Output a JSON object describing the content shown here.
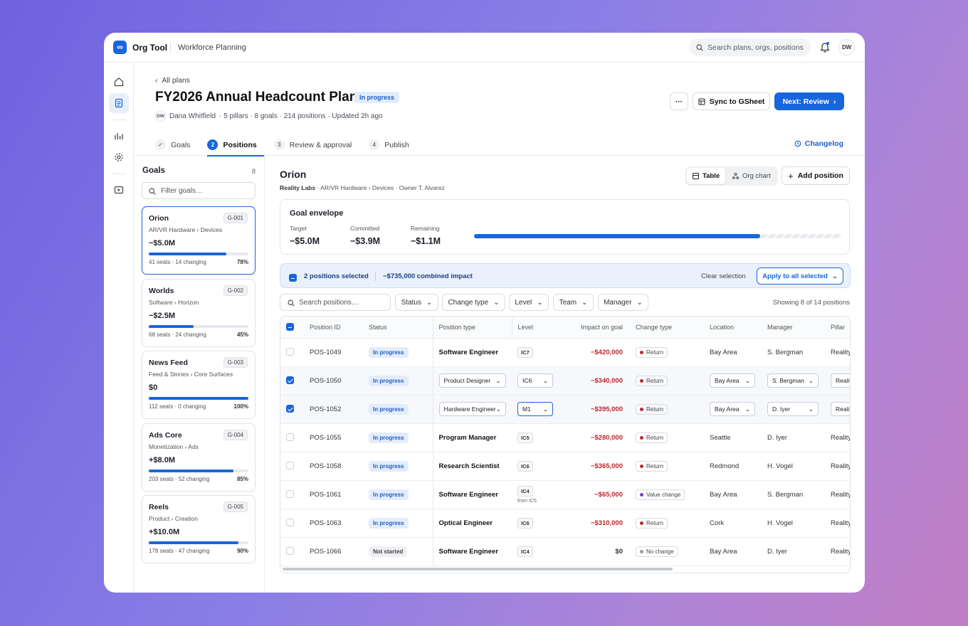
{
  "app": {
    "name": "Org Tool",
    "logo": "∞",
    "section": "Workforce Planning",
    "search_placeholder": "Search plans, orgs, positions",
    "user_initials": "DW"
  },
  "rail": {
    "icons": [
      "home-icon",
      "document-icon",
      "chart-icon",
      "gear-icon",
      "play-icon"
    ]
  },
  "header": {
    "back_label": "All plans",
    "title": "FY2026 Annual Headcount Plan",
    "status": "In progress",
    "owner_initials": "DW",
    "owner": "Dana Whitfield",
    "meta": "· 5 pillars · 8 goals · 214 positions · Updated 2h ago",
    "more_label": "···",
    "sync_label": "Sync to GSheet",
    "next_label": "Next: Review",
    "changelog_label": "Changelog",
    "tabs": [
      {
        "num": "✓",
        "label": "Goals"
      },
      {
        "num": "2",
        "label": "Positions"
      },
      {
        "num": "3",
        "label": "Review & approval"
      },
      {
        "num": "4",
        "label": "Publish"
      }
    ]
  },
  "goals": {
    "title": "Goals",
    "count": "8",
    "filter_placeholder": "Filter goals…",
    "items": [
      {
        "name": "Orion",
        "id": "G-001",
        "path": "AR/VR Hardware › Devices",
        "value": "−$5.0M",
        "progress": 0.78,
        "stats": "41 seats · 14 changing",
        "pct": "78%"
      },
      {
        "name": "Worlds",
        "id": "G-002",
        "path": "Software › Horizon",
        "value": "−$2.5M",
        "progress": 0.45,
        "stats": "68 seats · 24 changing",
        "pct": "45%"
      },
      {
        "name": "News Feed",
        "id": "G-003",
        "path": "Feed & Stories › Core Surfaces",
        "value": "$0",
        "progress": 1.0,
        "stats": "112 seats · 0 changing",
        "pct": "100%"
      },
      {
        "name": "Ads Core",
        "id": "G-004",
        "path": "Monetization › Ads",
        "value": "+$8.0M",
        "progress": 0.85,
        "stats": "203 seats · 52 changing",
        "pct": "85%"
      },
      {
        "name": "Reels",
        "id": "G-005",
        "path": "Product › Creation",
        "value": "+$10.0M",
        "progress": 0.9,
        "stats": "178 seats · 47 changing",
        "pct": "90%"
      }
    ]
  },
  "main": {
    "title": "Orion",
    "org": "Reality Labs",
    "path": "· AR/VR Hardware › Devices · Owner T. Alvarez",
    "view_table": "Table",
    "view_org": "Org chart",
    "add_label": "Add position",
    "envelope": {
      "title": "Goal envelope",
      "target_label": "Target",
      "target": "−$5.0M",
      "committed_label": "Committed",
      "committed": "−$3.9M",
      "remaining_label": "Remaining",
      "remaining": "−$1.1M",
      "progress": 0.78
    },
    "selection": {
      "count_label": "2 positions selected",
      "impact": "−$735,000 combined impact",
      "clear_label": "Clear selection",
      "apply_label": "Apply to all selected"
    },
    "filters": {
      "search_placeholder": "Search positions…",
      "dropdowns": [
        "Status",
        "Change type",
        "Level",
        "Team",
        "Manager"
      ],
      "showing": "Showing 8 of 14 positions"
    },
    "columns": [
      "Position ID",
      "Status",
      "Position type",
      "Level",
      "Impact on goal",
      "Change type",
      "Location",
      "Manager",
      "Pillar"
    ],
    "rows": [
      {
        "checked": false,
        "id": "POS-1049",
        "status": "In progress",
        "type": "Software Engineer",
        "level": "IC7",
        "from": "",
        "impact": "−$420,000",
        "change": "Return",
        "change_kind": "return",
        "location": "Bay Area",
        "manager": "S. Bergman",
        "pillar": "Reality Labs",
        "editing": false
      },
      {
        "checked": true,
        "id": "POS-1050",
        "status": "In progress",
        "type": "Product Designer",
        "level": "IC6",
        "from": "",
        "impact": "−$340,000",
        "change": "Return",
        "change_kind": "return",
        "location": "Bay Area",
        "manager": "S. Bergman",
        "pillar": "Reality Labs",
        "editing": true
      },
      {
        "checked": true,
        "id": "POS-1052",
        "status": "In progress",
        "type": "Hardware Engineer",
        "level": "M1",
        "from": "",
        "impact": "−$395,000",
        "change": "Return",
        "change_kind": "return",
        "location": "Bay Area",
        "manager": "D. Iyer",
        "pillar": "Reality Labs",
        "editing": true,
        "focus": true
      },
      {
        "checked": false,
        "id": "POS-1055",
        "status": "In progress",
        "type": "Program Manager",
        "level": "IC5",
        "from": "",
        "impact": "−$280,000",
        "change": "Return",
        "change_kind": "return",
        "location": "Seattle",
        "manager": "D. Iyer",
        "pillar": "Reality Labs",
        "editing": false
      },
      {
        "checked": false,
        "id": "POS-1058",
        "status": "In progress",
        "type": "Research Scientist",
        "level": "IC6",
        "from": "",
        "impact": "−$365,000",
        "change": "Return",
        "change_kind": "return",
        "location": "Redmond",
        "manager": "H. Vogel",
        "pillar": "Reality Labs",
        "editing": false
      },
      {
        "checked": false,
        "id": "POS-1061",
        "status": "In progress",
        "type": "Software Engineer",
        "level": "IC4",
        "from": "from IC5",
        "impact": "−$65,000",
        "change": "Value change",
        "change_kind": "value",
        "location": "Bay Area",
        "manager": "S. Bergman",
        "pillar": "Reality Labs",
        "editing": false
      },
      {
        "checked": false,
        "id": "POS-1063",
        "status": "In progress",
        "type": "Optical Engineer",
        "level": "IC6",
        "from": "",
        "impact": "−$310,000",
        "change": "Return",
        "change_kind": "return",
        "location": "Cork",
        "manager": "H. Vogel",
        "pillar": "Reality Labs",
        "editing": false
      },
      {
        "checked": false,
        "id": "POS-1066",
        "status": "Not started",
        "type": "Software Engineer",
        "level": "IC4",
        "from": "",
        "impact": "$0",
        "change": "No change",
        "change_kind": "none",
        "location": "Bay Area",
        "manager": "D. Iyer",
        "pillar": "Reality Labs",
        "editing": false
      }
    ]
  }
}
